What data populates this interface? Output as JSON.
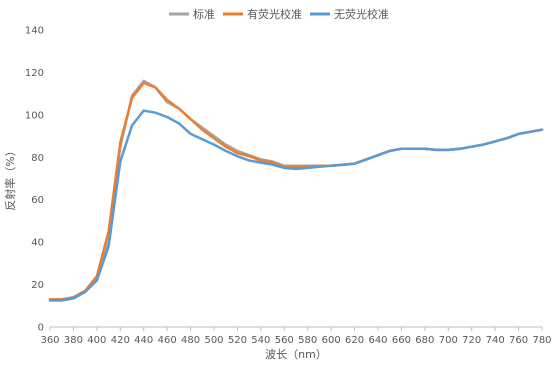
{
  "chart_data": {
    "type": "line",
    "title": "",
    "xlabel": "波长（nm）",
    "ylabel": "反射率（%）",
    "xlim": [
      360,
      780
    ],
    "ylim": [
      0,
      140
    ],
    "x_ticks": [
      360,
      380,
      400,
      420,
      440,
      460,
      480,
      500,
      520,
      540,
      560,
      580,
      600,
      620,
      640,
      660,
      680,
      700,
      720,
      740,
      760,
      780
    ],
    "y_ticks": [
      0,
      20,
      40,
      60,
      80,
      100,
      120,
      140
    ],
    "grid": false,
    "legend_position": "top",
    "x": [
      360,
      370,
      380,
      390,
      400,
      410,
      420,
      430,
      440,
      450,
      460,
      470,
      480,
      490,
      500,
      510,
      520,
      530,
      540,
      550,
      560,
      570,
      580,
      590,
      600,
      610,
      620,
      630,
      640,
      650,
      660,
      670,
      680,
      690,
      700,
      710,
      720,
      730,
      740,
      750,
      760,
      770,
      780
    ],
    "series": [
      {
        "name": "标准",
        "color": "#a5a5a5",
        "values": [
          13,
          13,
          14,
          17,
          23,
          40,
          85,
          109,
          116,
          113,
          106,
          103,
          98,
          94,
          90,
          86,
          83,
          81,
          79,
          78,
          76,
          76,
          76,
          76,
          76,
          76.5,
          77,
          79,
          81,
          83,
          84,
          84,
          84,
          83.5,
          83.5,
          84,
          85,
          86,
          87.5,
          89,
          91,
          92,
          93
        ]
      },
      {
        "name": "有荧光校准",
        "color": "#ed7d31",
        "values": [
          13,
          13,
          14,
          17,
          24,
          45,
          87,
          108,
          115,
          113,
          107,
          103,
          98,
          93,
          89,
          85,
          82,
          80.5,
          78.5,
          77.5,
          75.5,
          75.5,
          75.5,
          76,
          76,
          76.5,
          77,
          79,
          81,
          83,
          84,
          84,
          84,
          83.5,
          83.5,
          84,
          85,
          86,
          87.5,
          89,
          91,
          92,
          93
        ]
      },
      {
        "name": "无荧光校准",
        "color": "#5b9bd5",
        "values": [
          12.5,
          12.5,
          13.5,
          16.5,
          22,
          38,
          78,
          95,
          102,
          101,
          99,
          96,
          91,
          88.5,
          86,
          83,
          80.5,
          78.5,
          77.5,
          76.5,
          75,
          74.5,
          75,
          75.5,
          76,
          76.5,
          77,
          79,
          81,
          83,
          84,
          84,
          84,
          83.5,
          83.5,
          84,
          85,
          86,
          87.5,
          89,
          91,
          92,
          93
        ]
      }
    ]
  }
}
